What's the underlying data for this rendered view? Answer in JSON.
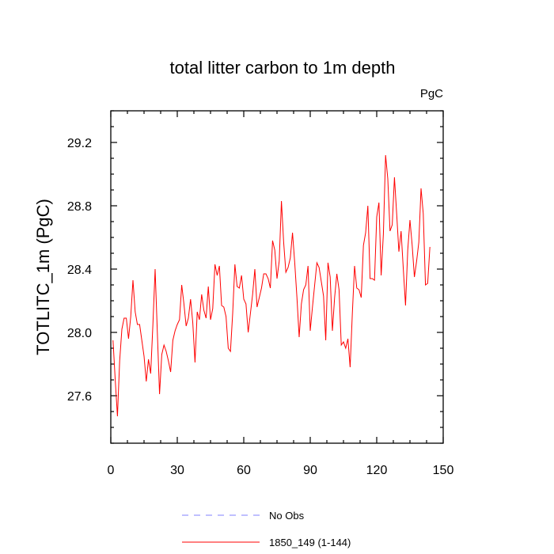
{
  "chart_data": {
    "type": "line",
    "title": "total litter carbon to 1m depth",
    "units_label": "PgC",
    "xlabel": "",
    "ylabel": "TOTLITC_1m  (PgC)",
    "xlim": [
      0,
      150
    ],
    "ylim": [
      27.3,
      29.4
    ],
    "x_ticks": [
      0,
      30,
      60,
      90,
      120,
      150
    ],
    "y_ticks": [
      27.6,
      28.0,
      28.4,
      28.8,
      29.2
    ],
    "x_tick_labels": [
      "0",
      "30",
      "60",
      "90",
      "120",
      "150"
    ],
    "y_tick_labels": [
      "27.6",
      "28.0",
      "28.4",
      "28.8",
      "29.2"
    ],
    "series": [
      {
        "name": "1850_149 (1-144)",
        "color": "#ff0000",
        "dash": "solid",
        "x_start": 1,
        "values": [
          27.95,
          27.7,
          27.47,
          27.82,
          28.02,
          28.09,
          28.09,
          27.96,
          28.1,
          28.33,
          28.13,
          28.05,
          28.05,
          27.95,
          27.85,
          27.69,
          27.83,
          27.74,
          28.05,
          28.4,
          28.0,
          27.61,
          27.86,
          27.92,
          27.88,
          27.82,
          27.75,
          27.95,
          28.01,
          28.05,
          28.08,
          28.3,
          28.18,
          28.04,
          28.09,
          28.21,
          28.06,
          27.81,
          28.13,
          28.08,
          28.24,
          28.14,
          28.09,
          28.29,
          28.08,
          28.15,
          28.43,
          28.36,
          28.42,
          28.17,
          28.16,
          28.1,
          27.9,
          27.88,
          28.12,
          28.43,
          28.29,
          28.28,
          28.36,
          28.21,
          28.18,
          28.0,
          28.12,
          28.24,
          28.4,
          28.16,
          28.22,
          28.28,
          28.37,
          28.37,
          28.34,
          28.28,
          28.58,
          28.52,
          28.34,
          28.45,
          28.83,
          28.57,
          28.38,
          28.41,
          28.47,
          28.63,
          28.44,
          28.22,
          27.97,
          28.18,
          28.27,
          28.3,
          28.42,
          28.01,
          28.16,
          28.3,
          28.44,
          28.41,
          28.32,
          28.23,
          27.95,
          28.44,
          28.35,
          28.01,
          28.22,
          28.37,
          28.27,
          27.92,
          27.94,
          27.9,
          27.96,
          27.78,
          28.12,
          28.42,
          28.28,
          28.27,
          28.22,
          28.55,
          28.63,
          28.8,
          28.34,
          28.34,
          28.33,
          28.73,
          28.82,
          28.36,
          28.62,
          29.12,
          28.97,
          28.64,
          28.68,
          28.98,
          28.75,
          28.51,
          28.64,
          28.4,
          28.17,
          28.52,
          28.71,
          28.55,
          28.35,
          28.45,
          28.57,
          28.91,
          28.75,
          28.3,
          28.31,
          28.54
        ]
      }
    ],
    "legend": [
      {
        "label": "No Obs",
        "color": "#8080ff",
        "dash": "dashed"
      },
      {
        "label": "1850_149 (1-144)",
        "color": "#ff0000",
        "dash": "solid"
      }
    ],
    "legend_position": "bottom-center"
  }
}
